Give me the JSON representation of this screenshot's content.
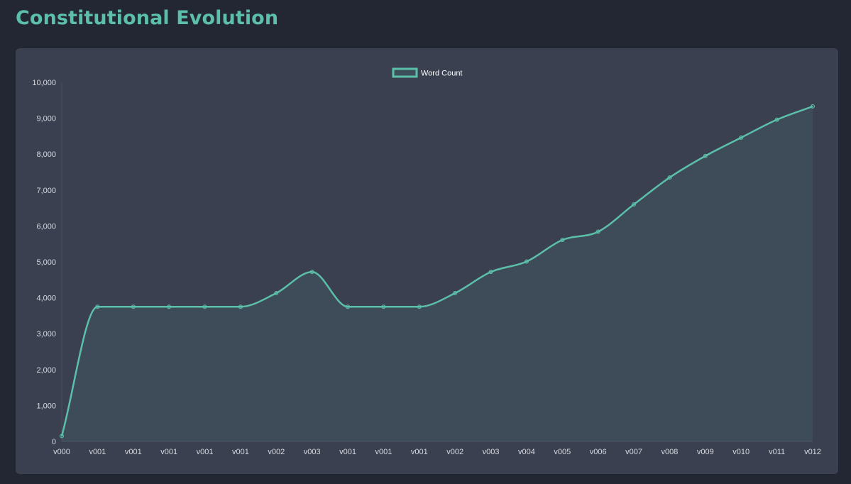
{
  "page": {
    "title": "Constitutional Evolution"
  },
  "chart_data": {
    "type": "line",
    "title": "",
    "xlabel": "",
    "ylabel": "",
    "categories": [
      "v000",
      "v001",
      "v001",
      "v001",
      "v001",
      "v001",
      "v002",
      "v003",
      "v001",
      "v001",
      "v001",
      "v002",
      "v003",
      "v004",
      "v005",
      "v006",
      "v007",
      "v008",
      "v009",
      "v010",
      "v011",
      "v012"
    ],
    "series": [
      {
        "name": "Word Count",
        "values": [
          150,
          3750,
          3750,
          3750,
          3750,
          3750,
          4130,
          4720,
          3750,
          3750,
          3750,
          4130,
          4720,
          5010,
          5610,
          5840,
          6600,
          7350,
          7950,
          8460,
          8960,
          9330
        ],
        "color": "#5cbfaa",
        "fill": "rgba(92,191,170,0.10)",
        "smooth": true,
        "area": true
      }
    ],
    "ylim": [
      0,
      10000
    ],
    "yticks": [
      0,
      1000,
      2000,
      3000,
      4000,
      5000,
      6000,
      7000,
      8000,
      9000,
      10000
    ],
    "ytick_labels": [
      "0",
      "1,000",
      "2,000",
      "3,000",
      "4,000",
      "5,000",
      "6,000",
      "7,000",
      "8,000",
      "9,000",
      "10,000"
    ],
    "grid": false,
    "legend": "top-center",
    "colors": {
      "line": "#5cbfaa",
      "axis": "#4a5060",
      "text": "#d7dae0",
      "background": "#3a4050"
    }
  }
}
